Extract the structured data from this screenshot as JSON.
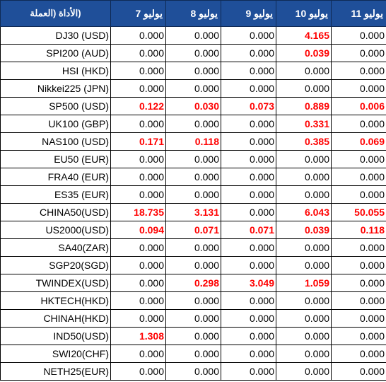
{
  "header": {
    "instrument": "(الأداة (العملة",
    "dates": [
      "يوليو 7",
      "يوليو 8",
      "يوليو 9",
      "يوليو 10",
      "يوليو 11"
    ]
  },
  "colors": {
    "header_bg": "#1f4f99",
    "header_text": "#ffffff",
    "positive": "#ff0000",
    "zero": "#000000"
  },
  "rows": [
    {
      "instrument": "DJ30 (USD)",
      "values": [
        "0.000",
        "0.000",
        "0.000",
        "4.165",
        "0.000"
      ]
    },
    {
      "instrument": "SPI200 (AUD)",
      "values": [
        "0.000",
        "0.000",
        "0.000",
        "0.039",
        "0.000"
      ]
    },
    {
      "instrument": "HSI (HKD)",
      "values": [
        "0.000",
        "0.000",
        "0.000",
        "0.000",
        "0.000"
      ]
    },
    {
      "instrument": "Nikkei225 (JPN)",
      "values": [
        "0.000",
        "0.000",
        "0.000",
        "0.000",
        "0.000"
      ]
    },
    {
      "instrument": "SP500 (USD)",
      "values": [
        "0.122",
        "0.030",
        "0.073",
        "0.889",
        "0.006"
      ]
    },
    {
      "instrument": "UK100 (GBP)",
      "values": [
        "0.000",
        "0.000",
        "0.000",
        "0.331",
        "0.000"
      ]
    },
    {
      "instrument": "NAS100 (USD)",
      "values": [
        "0.171",
        "0.118",
        "0.000",
        "0.385",
        "0.069"
      ]
    },
    {
      "instrument": "EU50 (EUR)",
      "values": [
        "0.000",
        "0.000",
        "0.000",
        "0.000",
        "0.000"
      ]
    },
    {
      "instrument": "FRA40 (EUR)",
      "values": [
        "0.000",
        "0.000",
        "0.000",
        "0.000",
        "0.000"
      ]
    },
    {
      "instrument": "ES35 (EUR)",
      "values": [
        "0.000",
        "0.000",
        "0.000",
        "0.000",
        "0.000"
      ]
    },
    {
      "instrument": "CHINA50(USD)",
      "values": [
        "18.735",
        "3.131",
        "0.000",
        "6.043",
        "50.055"
      ]
    },
    {
      "instrument": "US2000(USD)",
      "values": [
        "0.094",
        "0.071",
        "0.071",
        "0.039",
        "0.118"
      ]
    },
    {
      "instrument": "SA40(ZAR)",
      "values": [
        "0.000",
        "0.000",
        "0.000",
        "0.000",
        "0.000"
      ]
    },
    {
      "instrument": "SGP20(SGD)",
      "values": [
        "0.000",
        "0.000",
        "0.000",
        "0.000",
        "0.000"
      ]
    },
    {
      "instrument": "TWINDEX(USD)",
      "values": [
        "0.000",
        "0.298",
        "3.049",
        "1.059",
        "0.000"
      ]
    },
    {
      "instrument": "HKTECH(HKD)",
      "values": [
        "0.000",
        "0.000",
        "0.000",
        "0.000",
        "0.000"
      ]
    },
    {
      "instrument": "CHINAH(HKD)",
      "values": [
        "0.000",
        "0.000",
        "0.000",
        "0.000",
        "0.000"
      ]
    },
    {
      "instrument": "IND50(USD)",
      "values": [
        "1.308",
        "0.000",
        "0.000",
        "0.000",
        "0.000"
      ]
    },
    {
      "instrument": "SWI20(CHF)",
      "values": [
        "0.000",
        "0.000",
        "0.000",
        "0.000",
        "0.000"
      ]
    },
    {
      "instrument": "NETH25(EUR)",
      "values": [
        "0.000",
        "0.000",
        "0.000",
        "0.000",
        "0.000"
      ]
    }
  ]
}
